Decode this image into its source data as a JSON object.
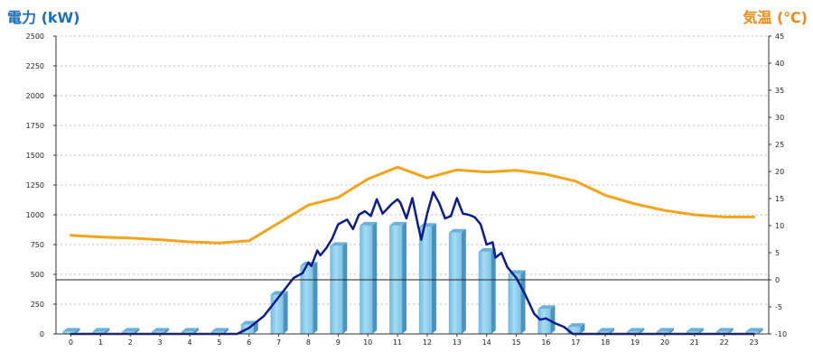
{
  "chart_data": {
    "type": "bar",
    "y_left_title": "電力 (kW)",
    "y_right_title": "気温 (℃)",
    "y_left_range": [
      0,
      2500
    ],
    "y_left_ticks": [
      0,
      250,
      500,
      750,
      1000,
      1250,
      1500,
      1750,
      2000,
      2250,
      2500
    ],
    "y_right_range": [
      -10,
      45
    ],
    "y_right_ticks": [
      -10,
      -5,
      0,
      5,
      10,
      15,
      20,
      25,
      30,
      35,
      40,
      45
    ],
    "categories": [
      "0",
      "1",
      "2",
      "3",
      "4",
      "5",
      "6",
      "7",
      "8",
      "9",
      "10",
      "11",
      "12",
      "13",
      "14",
      "15",
      "16",
      "17",
      "18",
      "19",
      "20",
      "21",
      "22",
      "23"
    ],
    "grid": true,
    "series": [
      {
        "kind": "bar",
        "axis": "left",
        "color": "#8fcfee",
        "values": [
          20,
          20,
          20,
          20,
          20,
          20,
          80,
          330,
          575,
          740,
          910,
          910,
          900,
          850,
          690,
          505,
          210,
          60,
          20,
          20,
          20,
          20,
          20,
          20
        ]
      },
      {
        "kind": "line",
        "axis": "left",
        "color": "#0c1c8c",
        "x": [
          0,
          1,
          2,
          3,
          4,
          5,
          5.6,
          6,
          6.5,
          7,
          7.5,
          7.8,
          8,
          8.1,
          8.3,
          8.4,
          8.6,
          8.8,
          9,
          9.3,
          9.5,
          9.7,
          9.9,
          10.1,
          10.3,
          10.5,
          10.8,
          11,
          11.1,
          11.3,
          11.5,
          11.7,
          11.8,
          12,
          12.2,
          12.4,
          12.6,
          12.8,
          13,
          13.2,
          13.4,
          13.6,
          13.8,
          14,
          14.2,
          14.3,
          14.5,
          14.7,
          15,
          15.3,
          15.6,
          15.8,
          16,
          16.3,
          16.6,
          16.9,
          17,
          17.3,
          18,
          19,
          20,
          21,
          22,
          23
        ],
        "y": [
          0,
          0,
          0,
          0,
          0,
          0,
          0,
          50,
          150,
          310,
          470,
          510,
          600,
          570,
          700,
          660,
          720,
          800,
          920,
          960,
          880,
          1000,
          1030,
          990,
          1130,
          1010,
          1090,
          1130,
          1100,
          970,
          1140,
          900,
          790,
          1010,
          1190,
          1100,
          970,
          990,
          1140,
          1010,
          1000,
          980,
          920,
          750,
          770,
          640,
          680,
          560,
          470,
          330,
          170,
          120,
          130,
          90,
          60,
          0,
          0,
          0,
          0,
          0,
          0,
          0,
          0,
          0
        ]
      },
      {
        "kind": "line",
        "axis": "right",
        "color": "#f5a318",
        "x": [
          0,
          1,
          2,
          3,
          4,
          5,
          6,
          7,
          8,
          9,
          10,
          11,
          12,
          13,
          14,
          15,
          16,
          17,
          18,
          19,
          20,
          21,
          22,
          23
        ],
        "y": [
          8.2,
          7.9,
          7.7,
          7.4,
          7.0,
          6.8,
          7.2,
          10.5,
          13.8,
          15.2,
          18.6,
          20.8,
          18.8,
          20.3,
          19.9,
          20.2,
          19.5,
          18.2,
          15.6,
          14.0,
          12.8,
          12.0,
          11.6,
          11.6
        ]
      }
    ]
  }
}
